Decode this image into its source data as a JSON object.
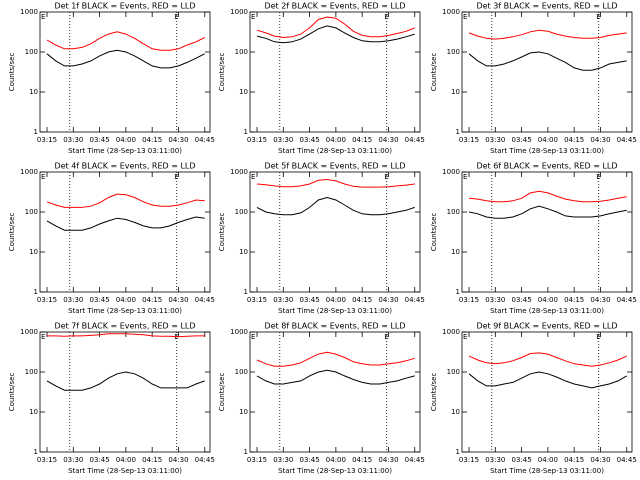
{
  "chart_data": [
    {
      "type": "line",
      "title": "Det 1f BLACK = Events, RED = LLD",
      "x_label": "Start Time (28-Sep-13 03:11:00)",
      "y_label": "Counts/sec",
      "log_scale": true,
      "x": [
        "03:15",
        "03:20",
        "03:25",
        "03:30",
        "03:35",
        "03:40",
        "03:45",
        "03:50",
        "03:55",
        "04:00",
        "04:05",
        "04:10",
        "04:15",
        "04:20",
        "04:25",
        "04:30",
        "04:35",
        "04:40",
        "04:45"
      ],
      "xlim": [
        "03:11",
        "04:48"
      ],
      "xticks": [
        "03:15",
        "03:30",
        "03:45",
        "04:00",
        "04:15",
        "04:30",
        "04:45"
      ],
      "ylim": [
        1,
        1000
      ],
      "yticks": [
        1,
        10,
        100,
        1000
      ],
      "vlines": [
        "03:28",
        "04:29"
      ],
      "annotations": [
        {
          "text": "E",
          "x": "03:11"
        },
        {
          "text": "E",
          "x": "04:27"
        }
      ],
      "series": [
        {
          "color": "#000000",
          "values": [
            90,
            60,
            45,
            45,
            50,
            60,
            80,
            100,
            110,
            100,
            80,
            60,
            45,
            40,
            40,
            45,
            55,
            70,
            90
          ]
        },
        {
          "color": "#ff0000",
          "values": [
            200,
            150,
            120,
            120,
            130,
            160,
            220,
            280,
            320,
            280,
            220,
            160,
            120,
            110,
            110,
            120,
            150,
            180,
            230
          ]
        }
      ]
    },
    {
      "type": "line",
      "title": "Det 2f BLACK = Events, RED = LLD",
      "x_label": "Start Time (28-Sep-13 03:11:00)",
      "y_label": "Counts/sec",
      "log_scale": true,
      "x": [
        "03:15",
        "03:20",
        "03:25",
        "03:30",
        "03:35",
        "03:40",
        "03:45",
        "03:50",
        "03:55",
        "04:00",
        "04:05",
        "04:10",
        "04:15",
        "04:20",
        "04:25",
        "04:30",
        "04:35",
        "04:40",
        "04:45"
      ],
      "xlim": [
        "03:11",
        "04:48"
      ],
      "xticks": [
        "03:15",
        "03:30",
        "03:45",
        "04:00",
        "04:15",
        "04:30",
        "04:45"
      ],
      "ylim": [
        1,
        1000
      ],
      "yticks": [
        1,
        10,
        100,
        1000
      ],
      "vlines": [
        "03:28",
        "04:29"
      ],
      "annotations": [
        {
          "text": "E",
          "x": "03:11"
        },
        {
          "text": "E",
          "x": "04:27"
        }
      ],
      "series": [
        {
          "color": "#000000",
          "values": [
            250,
            220,
            180,
            170,
            180,
            210,
            280,
            380,
            450,
            400,
            300,
            230,
            190,
            180,
            180,
            190,
            210,
            240,
            280
          ]
        },
        {
          "color": "#ff0000",
          "values": [
            350,
            300,
            250,
            230,
            240,
            280,
            400,
            650,
            750,
            700,
            500,
            330,
            260,
            240,
            240,
            260,
            290,
            330,
            400
          ]
        }
      ]
    },
    {
      "type": "line",
      "title": "Det 3f BLACK = Events, RED = LLD",
      "x_label": "Start Time (28-Sep-13 03:11:00)",
      "y_label": "Counts/sec",
      "log_scale": true,
      "x": [
        "03:15",
        "03:20",
        "03:25",
        "03:30",
        "03:35",
        "03:40",
        "03:45",
        "03:50",
        "03:55",
        "04:00",
        "04:05",
        "04:10",
        "04:15",
        "04:20",
        "04:25",
        "04:30",
        "04:35",
        "04:40",
        "04:45"
      ],
      "xlim": [
        "03:11",
        "04:48"
      ],
      "xticks": [
        "03:15",
        "03:30",
        "03:45",
        "04:00",
        "04:15",
        "04:30",
        "04:45"
      ],
      "ylim": [
        1,
        1000
      ],
      "yticks": [
        1,
        10,
        100,
        1000
      ],
      "vlines": [
        "03:28",
        "04:29"
      ],
      "annotations": [
        {
          "text": "E",
          "x": "03:11"
        },
        {
          "text": "E",
          "x": "04:27"
        }
      ],
      "series": [
        {
          "color": "#000000",
          "values": [
            90,
            60,
            45,
            45,
            50,
            60,
            75,
            95,
            100,
            90,
            70,
            55,
            40,
            35,
            35,
            40,
            50,
            55,
            60
          ]
        },
        {
          "color": "#ff0000",
          "values": [
            300,
            250,
            220,
            210,
            220,
            240,
            270,
            320,
            350,
            330,
            280,
            250,
            230,
            220,
            220,
            230,
            260,
            280,
            300
          ]
        }
      ]
    },
    {
      "type": "line",
      "title": "Det 4f BLACK = Events, RED = LLD",
      "x_label": "Start Time (28-Sep-13 03:11:00)",
      "y_label": "Counts/sec",
      "log_scale": true,
      "x": [
        "03:15",
        "03:20",
        "03:25",
        "03:30",
        "03:35",
        "03:40",
        "03:45",
        "03:50",
        "03:55",
        "04:00",
        "04:05",
        "04:10",
        "04:15",
        "04:20",
        "04:25",
        "04:30",
        "04:35",
        "04:40",
        "04:45"
      ],
      "xlim": [
        "03:11",
        "04:48"
      ],
      "xticks": [
        "03:15",
        "03:30",
        "03:45",
        "04:00",
        "04:15",
        "04:30",
        "04:45"
      ],
      "ylim": [
        1,
        1000
      ],
      "yticks": [
        1,
        10,
        100,
        1000
      ],
      "vlines": [
        "03:28",
        "04:29"
      ],
      "annotations": [
        {
          "text": "E",
          "x": "03:11"
        },
        {
          "text": "E",
          "x": "04:27"
        }
      ],
      "series": [
        {
          "color": "#000000",
          "values": [
            60,
            45,
            35,
            35,
            35,
            40,
            50,
            60,
            70,
            65,
            55,
            45,
            40,
            40,
            45,
            55,
            65,
            75,
            70
          ]
        },
        {
          "color": "#ff0000",
          "values": [
            180,
            150,
            130,
            130,
            130,
            140,
            170,
            230,
            280,
            270,
            230,
            180,
            150,
            140,
            140,
            150,
            170,
            200,
            190
          ]
        }
      ]
    },
    {
      "type": "line",
      "title": "Det 5f BLACK = Events, RED = LLD",
      "x_label": "Start Time (28-Sep-13 03:11:00)",
      "y_label": "Counts/sec",
      "log_scale": true,
      "x": [
        "03:15",
        "03:20",
        "03:25",
        "03:30",
        "03:35",
        "03:40",
        "03:45",
        "03:50",
        "03:55",
        "04:00",
        "04:05",
        "04:10",
        "04:15",
        "04:20",
        "04:25",
        "04:30",
        "04:35",
        "04:40",
        "04:45"
      ],
      "xlim": [
        "03:11",
        "04:48"
      ],
      "xticks": [
        "03:15",
        "03:30",
        "03:45",
        "04:00",
        "04:15",
        "04:30",
        "04:45"
      ],
      "ylim": [
        1,
        1000
      ],
      "yticks": [
        1,
        10,
        100,
        1000
      ],
      "vlines": [
        "03:28",
        "04:29"
      ],
      "annotations": [
        {
          "text": "E",
          "x": "03:11"
        },
        {
          "text": "E",
          "x": "04:27"
        }
      ],
      "series": [
        {
          "color": "#000000",
          "values": [
            130,
            100,
            90,
            85,
            85,
            95,
            130,
            200,
            230,
            200,
            150,
            110,
            90,
            85,
            85,
            90,
            100,
            110,
            130
          ]
        },
        {
          "color": "#ff0000",
          "values": [
            500,
            480,
            450,
            430,
            430,
            450,
            500,
            620,
            650,
            600,
            500,
            440,
            420,
            420,
            420,
            430,
            450,
            470,
            500
          ]
        }
      ]
    },
    {
      "type": "line",
      "title": "Det 6f BLACK = Events, RED = LLD",
      "x_label": "Start Time (28-Sep-13 03:11:00)",
      "y_label": "Counts/sec",
      "log_scale": true,
      "x": [
        "03:15",
        "03:20",
        "03:25",
        "03:30",
        "03:35",
        "03:40",
        "03:45",
        "03:50",
        "03:55",
        "04:00",
        "04:05",
        "04:10",
        "04:15",
        "04:20",
        "04:25",
        "04:30",
        "04:35",
        "04:40",
        "04:45"
      ],
      "xlim": [
        "03:11",
        "04:48"
      ],
      "xticks": [
        "03:15",
        "03:30",
        "03:45",
        "04:00",
        "04:15",
        "04:30",
        "04:45"
      ],
      "ylim": [
        1,
        1000
      ],
      "yticks": [
        1,
        10,
        100,
        1000
      ],
      "vlines": [
        "03:28",
        "04:29"
      ],
      "annotations": [
        {
          "text": "E",
          "x": "03:11"
        },
        {
          "text": "E",
          "x": "04:27"
        }
      ],
      "series": [
        {
          "color": "#000000",
          "values": [
            100,
            90,
            75,
            70,
            70,
            75,
            90,
            120,
            140,
            120,
            100,
            80,
            75,
            75,
            75,
            80,
            90,
            100,
            110
          ]
        },
        {
          "color": "#ff0000",
          "values": [
            220,
            210,
            190,
            180,
            180,
            190,
            220,
            300,
            330,
            300,
            250,
            210,
            190,
            180,
            180,
            185,
            200,
            220,
            240
          ]
        }
      ]
    },
    {
      "type": "line",
      "title": "Det 7f BLACK = Events, RED = LLD",
      "x_label": "Start Time (28-Sep-13 03:11:00)",
      "y_label": "Counts/sec",
      "log_scale": true,
      "x": [
        "03:15",
        "03:20",
        "03:25",
        "03:30",
        "03:35",
        "03:40",
        "03:45",
        "03:50",
        "03:55",
        "04:00",
        "04:05",
        "04:10",
        "04:15",
        "04:20",
        "04:25",
        "04:30",
        "04:35",
        "04:40",
        "04:45"
      ],
      "xlim": [
        "03:11",
        "04:48"
      ],
      "xticks": [
        "03:15",
        "03:30",
        "03:45",
        "04:00",
        "04:15",
        "04:30",
        "04:45"
      ],
      "ylim": [
        1,
        1000
      ],
      "yticks": [
        1,
        10,
        100,
        1000
      ],
      "vlines": [
        "03:28",
        "04:29"
      ],
      "annotations": [
        {
          "text": "E",
          "x": "03:11"
        },
        {
          "text": "E",
          "x": "04:27"
        }
      ],
      "series": [
        {
          "color": "#000000",
          "values": [
            60,
            45,
            35,
            35,
            35,
            40,
            50,
            70,
            90,
            100,
            90,
            70,
            50,
            40,
            40,
            40,
            40,
            50,
            60
          ]
        },
        {
          "color": "#ff0000",
          "values": [
            800,
            800,
            780,
            800,
            800,
            820,
            850,
            900,
            900,
            900,
            880,
            850,
            800,
            780,
            780,
            760,
            780,
            800,
            800
          ]
        }
      ]
    },
    {
      "type": "line",
      "title": "Det 8f BLACK = Events, RED = LLD",
      "x_label": "Start Time (28-Sep-13 03:11:00)",
      "y_label": "Counts/sec",
      "log_scale": true,
      "x": [
        "03:15",
        "03:20",
        "03:25",
        "03:30",
        "03:35",
        "03:40",
        "03:45",
        "03:50",
        "03:55",
        "04:00",
        "04:05",
        "04:10",
        "04:15",
        "04:20",
        "04:25",
        "04:30",
        "04:35",
        "04:40",
        "04:45"
      ],
      "xlim": [
        "03:11",
        "04:48"
      ],
      "xticks": [
        "03:15",
        "03:30",
        "03:45",
        "04:00",
        "04:15",
        "04:30",
        "04:45"
      ],
      "ylim": [
        1,
        1000
      ],
      "yticks": [
        1,
        10,
        100,
        1000
      ],
      "vlines": [
        "03:28",
        "04:29"
      ],
      "annotations": [
        {
          "text": "E",
          "x": "03:11"
        },
        {
          "text": "E",
          "x": "04:27"
        }
      ],
      "series": [
        {
          "color": "#000000",
          "values": [
            80,
            60,
            50,
            50,
            55,
            60,
            80,
            100,
            110,
            100,
            80,
            65,
            55,
            50,
            50,
            55,
            60,
            70,
            80
          ]
        },
        {
          "color": "#ff0000",
          "values": [
            200,
            160,
            140,
            140,
            150,
            170,
            220,
            280,
            310,
            280,
            230,
            180,
            160,
            150,
            150,
            160,
            170,
            190,
            220
          ]
        }
      ]
    },
    {
      "type": "line",
      "title": "Det 9f BLACK = Events, RED = LLD",
      "x_label": "Start Time (28-Sep-13 03:11:00)",
      "y_label": "Counts/sec",
      "log_scale": true,
      "x": [
        "03:15",
        "03:20",
        "03:25",
        "03:30",
        "03:35",
        "03:40",
        "03:45",
        "03:50",
        "03:55",
        "04:00",
        "04:05",
        "04:10",
        "04:15",
        "04:20",
        "04:25",
        "04:30",
        "04:35",
        "04:40",
        "04:45"
      ],
      "xlim": [
        "03:11",
        "04:48"
      ],
      "xticks": [
        "03:15",
        "03:30",
        "03:45",
        "04:00",
        "04:15",
        "04:30",
        "04:45"
      ],
      "ylim": [
        1,
        1000
      ],
      "yticks": [
        1,
        10,
        100,
        1000
      ],
      "vlines": [
        "03:28",
        "04:29"
      ],
      "annotations": [
        {
          "text": "E",
          "x": "03:11"
        },
        {
          "text": "E",
          "x": "04:27"
        }
      ],
      "series": [
        {
          "color": "#000000",
          "values": [
            90,
            60,
            45,
            45,
            50,
            55,
            70,
            90,
            100,
            90,
            75,
            60,
            50,
            45,
            40,
            45,
            50,
            60,
            80
          ]
        },
        {
          "color": "#ff0000",
          "values": [
            250,
            200,
            170,
            160,
            170,
            190,
            230,
            290,
            300,
            280,
            230,
            190,
            160,
            150,
            140,
            150,
            170,
            200,
            250
          ]
        }
      ]
    }
  ]
}
